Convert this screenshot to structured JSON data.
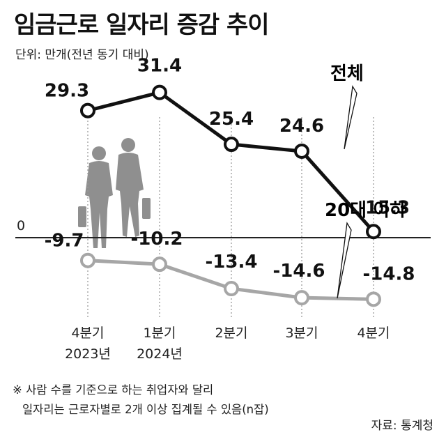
{
  "title": "임금근로 일자리 증감 추이",
  "unit": "단위: 만개(전년 동기 대비)",
  "footnote": [
    "※ 사람 수를 기준으로 하는 취업자와 달리",
    "일자리는 근로자별로 2개 이상 집계될 수 있음(n잡)"
  ],
  "source": "자료: 통계청",
  "zero_label": "0",
  "colors": {
    "total": "#111111",
    "young": "#a6a6a6",
    "figure": "#8f8f8f"
  },
  "chart_data": {
    "type": "line",
    "title": "임금근로 일자리 증감 추이",
    "ylabel": "단위: 만개(전년 동기 대비)",
    "categories": [
      [
        "4분기",
        "2023년"
      ],
      [
        "1분기",
        "2024년"
      ],
      [
        "2분기"
      ],
      [
        "3분기"
      ],
      [
        "4분기"
      ]
    ],
    "series": [
      {
        "name": "전체",
        "values": [
          29.3,
          31.4,
          25.4,
          24.6,
          15.3
        ],
        "labels": [
          "29.3",
          "31.4",
          "25.4",
          "24.6",
          "15.3"
        ]
      },
      {
        "name": "20대 이하",
        "values": [
          -9.7,
          -10.2,
          -13.4,
          -14.6,
          -14.8
        ],
        "labels": [
          "-9.7",
          "-10.2",
          "-13.4",
          "-14.6",
          "-14.8"
        ]
      }
    ],
    "grid": false,
    "legend": "inline-right"
  }
}
